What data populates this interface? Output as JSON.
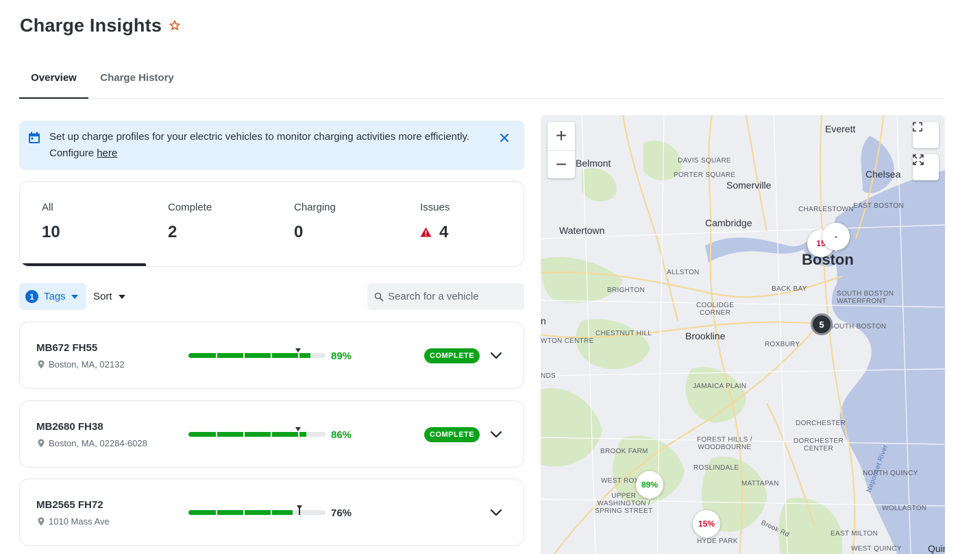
{
  "header": {
    "title": "Charge Insights",
    "star_icon": "star-outline-icon"
  },
  "tabs": [
    {
      "label": "Overview",
      "active": true
    },
    {
      "label": "Charge History",
      "active": false
    }
  ],
  "banner": {
    "icon": "calendar-icon",
    "text": "Set up charge profiles for your electric vehicles to monitor charging activities more efficiently. Configure ",
    "link_text": "here",
    "close_icon": "close-icon"
  },
  "stats": {
    "all": {
      "label": "All",
      "value": "10"
    },
    "complete": {
      "label": "Complete",
      "value": "2"
    },
    "charging": {
      "label": "Charging",
      "value": "0"
    },
    "issues": {
      "label": "Issues",
      "value": "4",
      "icon": "warning-icon",
      "color": "#c8102e"
    }
  },
  "filters": {
    "tags_count": "1",
    "tags_label": "Tags",
    "sort_label": "Sort",
    "search_placeholder": "Search for a vehicle"
  },
  "vehicles": [
    {
      "name": "MB672 FH55",
      "location": "Boston, MA, 02132",
      "charge": 89,
      "charge_label": "89%",
      "status": "COMPLETE"
    },
    {
      "name": "MB2680 FH38",
      "location": "Boston, MA, 02284-6028",
      "charge": 86,
      "charge_label": "86%",
      "status": "COMPLETE"
    },
    {
      "name": "MB2565 FH72",
      "location": "1010 Mass Ave",
      "charge": 76,
      "charge_label": "76%",
      "status": ""
    }
  ],
  "colors": {
    "accent": "#0d6ad6",
    "complete": "#0ca21a",
    "issue": "#c8102e",
    "banner_bg": "#e3f1fd"
  },
  "map": {
    "zoom_in": "+",
    "zoom_out": "−",
    "labels": {
      "everett": "Everett",
      "chelsea": "Chelsea",
      "belmont": "Belmont",
      "somerville": "Somerville",
      "cambridge": "Cambridge",
      "watertown": "Watertown",
      "boston": "Boston",
      "brookline": "Brookline",
      "davis_square": "DAVIS SQUARE",
      "porter_square": "PORTER SQUARE",
      "charlestown": "CHARLESTOWN",
      "east_boston": "EAST BOSTON",
      "allston": "ALLSTON",
      "brighton": "BRIGHTON",
      "back_bay": "BACK BAY",
      "south_boston_waterfront": "SOUTH BOSTON\nWATERFRONT",
      "south_boston": "SOUTH BOSTON",
      "coolidge_corner": "COOLIDGE\nCORNER",
      "chestnut_hill": "CHESTNUT HILL",
      "roxbury": "ROXBURY",
      "newton_centre": "WTON CENTRE",
      "jamaica_plain": "JAMAICA PLAIN",
      "dorchester": "DORCHESTER",
      "forest_hills": "FOREST HILLS /\nWOODBOURNE",
      "dorchester_center": "DORCHESTER\nCENTER",
      "brook_farm": "BROOK FARM",
      "roslindale": "ROSLINDALE",
      "north_quincy": "NORTH QUINCY",
      "west_rox": "WEST ROX",
      "upper_washington": "UPPER\nWASHINGTON /\nSPRING STREET",
      "mattapan": "MATTAPAN",
      "wollaston": "WOLLASTON",
      "hyde_park": "HYDE PARK",
      "east_milton": "EAST MILTON",
      "west_quincy": "WEST QUINCY",
      "quincy": "Quin",
      "brook_rd": "Brook Rd",
      "neponset": "Neponset River",
      "n_left": "n",
      "nds_left": "NDS"
    },
    "pins": {
      "p1": "15",
      "p2": "-",
      "p3": "89%",
      "p4": "15%",
      "cluster": "5"
    }
  }
}
